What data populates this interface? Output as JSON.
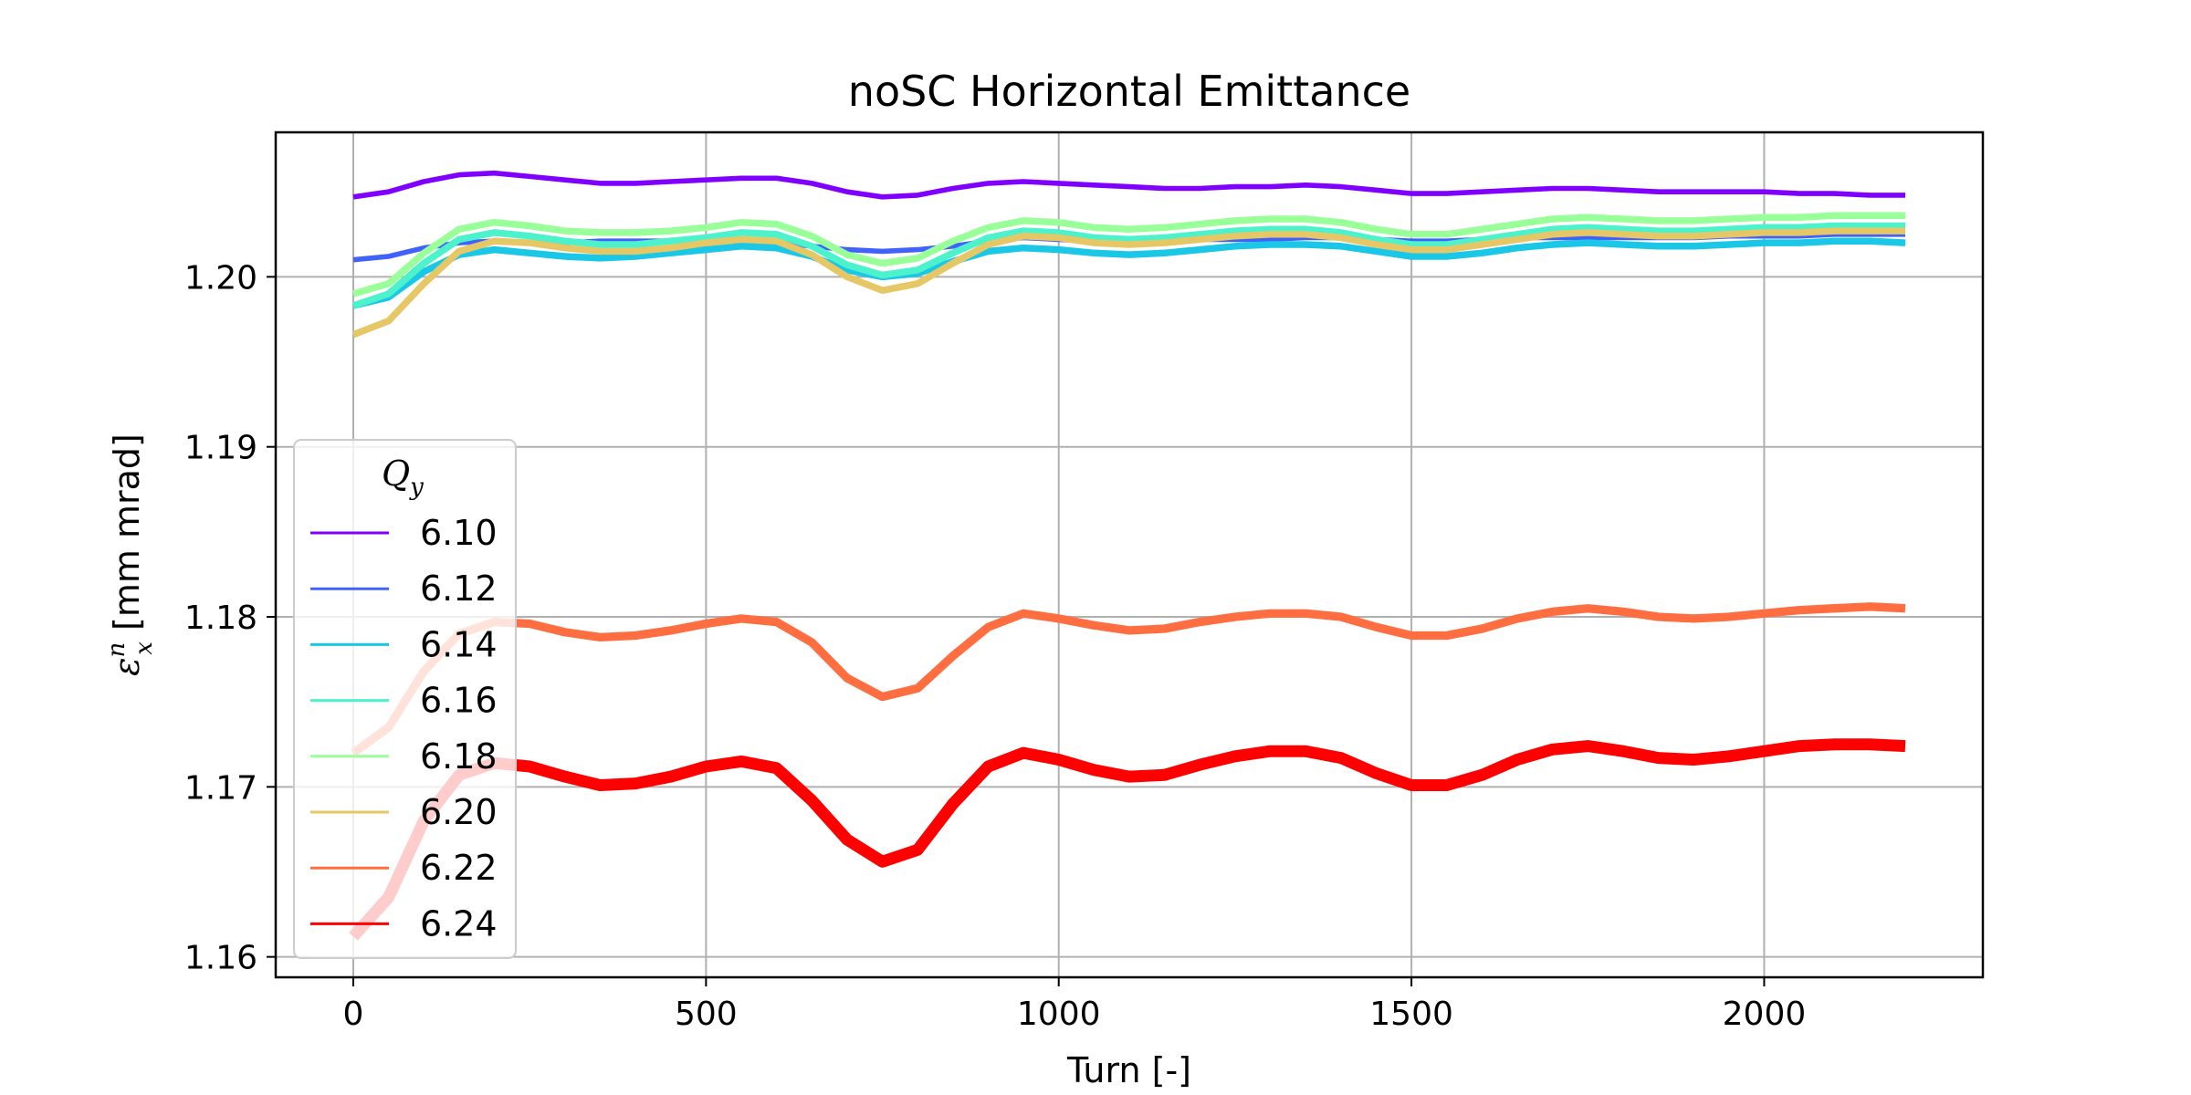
{
  "chart_data": {
    "type": "line",
    "title": "noSC Horizontal Emittance",
    "xlabel": "Turn [-]",
    "ylabel": {
      "symbol": "ε",
      "sup": "n",
      "sub": "x",
      "rest": " [mm mrad]"
    },
    "xlim": [
      -110,
      2310
    ],
    "ylim": [
      1.1588,
      1.2085
    ],
    "xticks": [
      0,
      500,
      1000,
      1500,
      2000
    ],
    "yticks": [
      1.16,
      1.17,
      1.18,
      1.19,
      1.2
    ],
    "ytick_labels": [
      "1.16",
      "1.17",
      "1.18",
      "1.19",
      "1.20"
    ],
    "grid": true,
    "legend": {
      "title": "Q",
      "title_sub": "y",
      "placement": "lower-left"
    },
    "x": [
      0,
      50,
      100,
      150,
      200,
      250,
      300,
      350,
      400,
      450,
      500,
      550,
      600,
      650,
      700,
      750,
      800,
      850,
      900,
      950,
      1000,
      1050,
      1100,
      1150,
      1200,
      1250,
      1300,
      1350,
      1400,
      1450,
      1500,
      1550,
      1600,
      1650,
      1700,
      1750,
      1800,
      1850,
      1900,
      1950,
      2000,
      2050,
      2100,
      2150,
      2200
    ],
    "series": [
      {
        "name": "6.10",
        "color": "#8000ff",
        "values": [
          1.2047,
          1.205,
          1.2056,
          1.206,
          1.2061,
          1.2059,
          1.2057,
          1.2055,
          1.2055,
          1.2056,
          1.2057,
          1.2058,
          1.2058,
          1.2055,
          1.205,
          1.2047,
          1.2048,
          1.2052,
          1.2055,
          1.2056,
          1.2055,
          1.2054,
          1.2053,
          1.2052,
          1.2052,
          1.2053,
          1.2053,
          1.2054,
          1.2053,
          1.2051,
          1.2049,
          1.2049,
          1.205,
          1.2051,
          1.2052,
          1.2052,
          1.2051,
          1.205,
          1.205,
          1.205,
          1.205,
          1.2049,
          1.2049,
          1.2048,
          1.2048
        ],
        "band": 0.0003
      },
      {
        "name": "6.12",
        "color": "#4062fa",
        "values": [
          1.201,
          1.2012,
          1.2017,
          1.202,
          1.2021,
          1.202,
          1.202,
          1.2021,
          1.2021,
          1.2021,
          1.2021,
          1.2021,
          1.202,
          1.2018,
          1.2016,
          1.2015,
          1.2016,
          1.2018,
          1.2021,
          1.2023,
          1.2022,
          1.2021,
          1.2021,
          1.2021,
          1.2022,
          1.2022,
          1.2022,
          1.2023,
          1.2023,
          1.2022,
          1.2021,
          1.2021,
          1.2022,
          1.2023,
          1.2023,
          1.2023,
          1.2023,
          1.2023,
          1.2023,
          1.2024,
          1.2024,
          1.2024,
          1.2025,
          1.2025,
          1.2025
        ],
        "band": 0.0003
      },
      {
        "name": "6.14",
        "color": "#1ac7e6",
        "values": [
          1.1983,
          1.1988,
          1.2003,
          1.2013,
          1.2016,
          1.2014,
          1.2012,
          1.2011,
          1.2012,
          1.2014,
          1.2016,
          1.2018,
          1.2017,
          1.2012,
          1.2004,
          1.2,
          1.2002,
          1.2009,
          1.2015,
          1.2017,
          1.2016,
          1.2014,
          1.2013,
          1.2014,
          1.2016,
          1.2018,
          1.2019,
          1.2019,
          1.2018,
          1.2015,
          1.2012,
          1.2012,
          1.2014,
          1.2017,
          1.2019,
          1.202,
          1.2019,
          1.2018,
          1.2018,
          1.2019,
          1.202,
          1.202,
          1.2021,
          1.2021,
          1.202
        ],
        "band": 0.0004
      },
      {
        "name": "6.16",
        "color": "#4cf2cc",
        "values": [
          1.1983,
          1.199,
          1.2008,
          1.2022,
          1.2026,
          1.2024,
          1.2021,
          1.2019,
          1.2019,
          1.2021,
          1.2023,
          1.2026,
          1.2025,
          1.2018,
          1.2007,
          1.2001,
          1.2004,
          1.2014,
          1.2023,
          1.2027,
          1.2026,
          1.2023,
          1.2022,
          1.2023,
          1.2025,
          1.2027,
          1.2028,
          1.2028,
          1.2026,
          1.2022,
          1.2019,
          1.2019,
          1.2022,
          1.2025,
          1.2028,
          1.2029,
          1.2028,
          1.2027,
          1.2027,
          1.2028,
          1.2029,
          1.2029,
          1.203,
          1.203,
          1.203
        ],
        "band": 0.0004
      },
      {
        "name": "6.18",
        "color": "#99ff99",
        "values": [
          1.199,
          1.1996,
          1.2014,
          1.2028,
          1.2032,
          1.203,
          1.2027,
          1.2026,
          1.2026,
          1.2027,
          1.2029,
          1.2032,
          1.2031,
          1.2024,
          1.2013,
          1.2008,
          1.2011,
          1.2021,
          1.2029,
          1.2033,
          1.2032,
          1.2029,
          1.2028,
          1.2029,
          1.2031,
          1.2033,
          1.2034,
          1.2034,
          1.2032,
          1.2028,
          1.2025,
          1.2025,
          1.2028,
          1.2031,
          1.2034,
          1.2035,
          1.2034,
          1.2033,
          1.2033,
          1.2034,
          1.2035,
          1.2035,
          1.2036,
          1.2036,
          1.2036
        ],
        "band": 0.0004
      },
      {
        "name": "6.20",
        "color": "#e6c766",
        "values": [
          1.1966,
          1.1974,
          1.1996,
          1.2015,
          1.2021,
          1.202,
          1.2017,
          1.2015,
          1.2015,
          1.2017,
          1.202,
          1.2022,
          1.2021,
          1.2013,
          1.2,
          1.1992,
          1.1996,
          1.2008,
          1.2019,
          1.2024,
          1.2023,
          1.202,
          1.2019,
          1.202,
          1.2022,
          1.2024,
          1.2025,
          1.2025,
          1.2023,
          1.2019,
          1.2016,
          1.2016,
          1.2019,
          1.2022,
          1.2025,
          1.2026,
          1.2025,
          1.2024,
          1.2024,
          1.2025,
          1.2026,
          1.2026,
          1.2027,
          1.2027,
          1.2027
        ],
        "band": 0.0004
      },
      {
        "name": "6.22",
        "color": "#ff6e40",
        "values": [
          1.172,
          1.1735,
          1.1768,
          1.179,
          1.1797,
          1.1796,
          1.1791,
          1.1788,
          1.1789,
          1.1792,
          1.1796,
          1.1799,
          1.1797,
          1.1785,
          1.1764,
          1.1753,
          1.1758,
          1.1777,
          1.1794,
          1.1802,
          1.1799,
          1.1795,
          1.1792,
          1.1793,
          1.1797,
          1.18,
          1.1802,
          1.1802,
          1.18,
          1.1794,
          1.1789,
          1.1789,
          1.1793,
          1.1799,
          1.1803,
          1.1805,
          1.1803,
          1.18,
          1.1799,
          1.18,
          1.1802,
          1.1804,
          1.1805,
          1.1806,
          1.1805
        ],
        "band": 0.0005
      },
      {
        "name": "6.24",
        "color": "#ff0000",
        "values": [
          1.1612,
          1.1635,
          1.168,
          1.1707,
          1.1714,
          1.1712,
          1.1706,
          1.1701,
          1.1702,
          1.1706,
          1.1712,
          1.1715,
          1.1711,
          1.1692,
          1.1669,
          1.1656,
          1.1663,
          1.169,
          1.1712,
          1.172,
          1.1716,
          1.171,
          1.1706,
          1.1707,
          1.1713,
          1.1718,
          1.1721,
          1.1721,
          1.1717,
          1.1708,
          1.1701,
          1.1701,
          1.1707,
          1.1716,
          1.1722,
          1.1724,
          1.1721,
          1.1717,
          1.1716,
          1.1718,
          1.1721,
          1.1724,
          1.1725,
          1.1725,
          1.1724
        ],
        "band": 0.0007
      }
    ]
  }
}
